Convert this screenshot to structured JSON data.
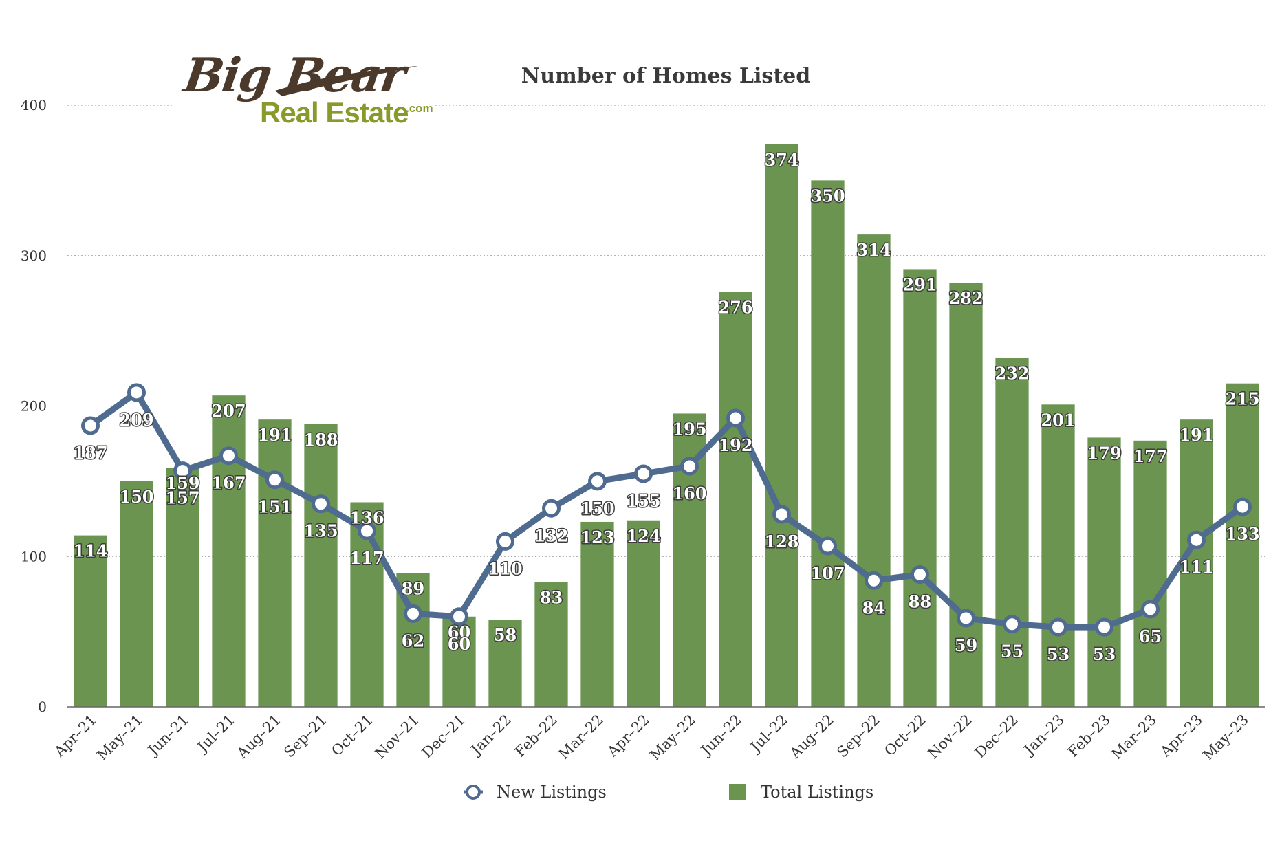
{
  "logo": {
    "script_text": "Big Bear",
    "sub_text": "Real Estate",
    "suffix": ".com",
    "colors": {
      "script": "#4b3a2b",
      "sub": "#8a9a2a"
    }
  },
  "chart_data": {
    "type": "bar",
    "title": "Number of Homes Listed",
    "xlabel": "",
    "ylabel": "",
    "ylim": [
      0,
      400
    ],
    "yticks": [
      0,
      100,
      200,
      300,
      400
    ],
    "grid": true,
    "legend_position": "bottom",
    "categories": [
      "Apr–21",
      "May–21",
      "Jun–21",
      "Jul–21",
      "Aug–21",
      "Sep–21",
      "Oct–21",
      "Nov–21",
      "Dec–21",
      "Jan–22",
      "Feb–22",
      "Mar–22",
      "Apr–22",
      "May–22",
      "Jun–22",
      "Jul–22",
      "Aug–22",
      "Sep–22",
      "Oct–22",
      "Nov–22",
      "Dec–22",
      "Jan–23",
      "Feb–23",
      "Mar–23",
      "Apr–23",
      "May–23"
    ],
    "series": [
      {
        "name": "New Listings",
        "type": "line",
        "color": "#4f6b8f",
        "values": [
          187,
          209,
          157,
          167,
          151,
          135,
          117,
          62,
          60,
          110,
          132,
          150,
          155,
          160,
          192,
          128,
          107,
          84,
          88,
          59,
          55,
          53,
          53,
          65,
          111,
          133
        ]
      },
      {
        "name": "Total Listings",
        "type": "bar",
        "color": "#6a9450",
        "values": [
          114,
          150,
          159,
          207,
          191,
          188,
          136,
          89,
          60,
          58,
          83,
          123,
          124,
          195,
          276,
          374,
          350,
          314,
          291,
          282,
          232,
          201,
          179,
          177,
          191,
          215
        ]
      }
    ]
  }
}
